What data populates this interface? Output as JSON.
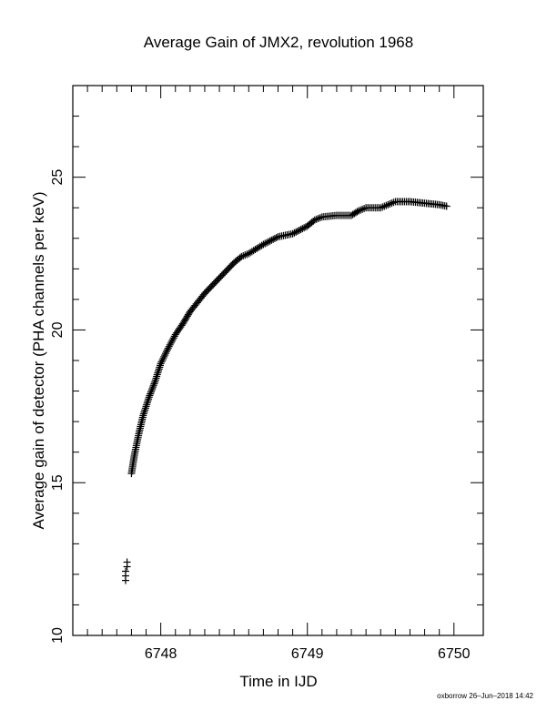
{
  "chart_data": {
    "type": "scatter",
    "title": "Average Gain of JMX2, revolution 1968",
    "xlabel": "Time in IJD",
    "ylabel": "Average gain of detector (PHA channels per keV)",
    "xlim": [
      6747.4,
      6750.2
    ],
    "ylim": [
      10,
      28
    ],
    "x_ticks": [
      6748,
      6749,
      6750
    ],
    "y_ticks": [
      10,
      15,
      20,
      25
    ],
    "x_tick_labels": [
      "6748",
      "6749",
      "6750"
    ],
    "y_tick_labels": [
      "10",
      "15",
      "20",
      "25"
    ],
    "grid": false,
    "marker": "plus",
    "series": [
      {
        "x": [
          6747.76,
          6747.76,
          6747.76,
          6747.77,
          6747.77,
          6747.8,
          6747.82,
          6747.85,
          6747.88,
          6747.92,
          6747.96,
          6748.0,
          6748.05,
          6748.1,
          6748.15,
          6748.2,
          6748.3,
          6748.4,
          6748.5,
          6748.55,
          6748.6,
          6748.7,
          6748.8,
          6748.9,
          6749.0,
          6749.05,
          6749.1,
          6749.2,
          6749.3,
          6749.35,
          6749.4,
          6749.5,
          6749.55,
          6749.6,
          6749.65,
          6749.7,
          6749.8,
          6749.9,
          6749.95
        ],
        "y": [
          11.8,
          11.95,
          12.1,
          12.25,
          12.4,
          15.3,
          15.9,
          16.6,
          17.2,
          17.8,
          18.3,
          18.9,
          19.4,
          19.85,
          20.2,
          20.6,
          21.2,
          21.7,
          22.2,
          22.4,
          22.5,
          22.8,
          23.05,
          23.15,
          23.4,
          23.6,
          23.7,
          23.75,
          23.75,
          23.9,
          24.0,
          24.0,
          24.1,
          24.2,
          24.2,
          24.2,
          24.15,
          24.1,
          24.05
        ]
      }
    ]
  },
  "footer": "oxborrow 26–Jun–2018 14:42"
}
